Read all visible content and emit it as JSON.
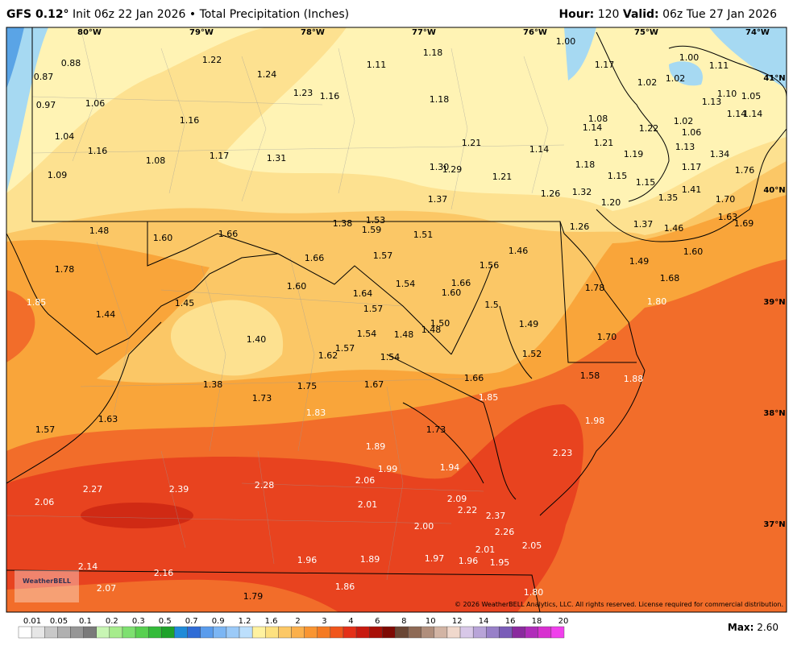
{
  "header": {
    "model": "GFS 0.12°",
    "init": "Init 06z 22 Jan 2026",
    "separator": "•",
    "product": "Total Precipitation (Inches)",
    "hour_label": "Hour:",
    "hour": "120",
    "valid_label": "Valid:",
    "valid": "06z Tue 27 Jan 2026"
  },
  "map": {
    "longitude_labels": [
      "80°W",
      "79°W",
      "78°W",
      "77°W",
      "76°W",
      "75°W",
      "74°W"
    ],
    "latitude_labels": [
      "41°N",
      "40°N",
      "39°N",
      "38°N",
      "37°N"
    ],
    "point_values": [
      "0.88",
      "0.87",
      "0.97",
      "1.06",
      "1.04",
      "1.16",
      "1.09",
      "1.22",
      "1.24",
      "1.23",
      "1.16",
      "1.11",
      "1.18",
      "1.18",
      "1.16",
      "1.17",
      "1.08",
      "1.31",
      "1.00",
      "1.17",
      "1.02",
      "1.00",
      "1.02",
      "1.11",
      "1.10",
      "1.05",
      "1.13",
      "1.14",
      "1.14",
      "1.08",
      "1.14",
      "1.22",
      "1.02",
      "1.06",
      "1.21",
      "1.13",
      "1.19",
      "1.34",
      "1.21",
      "1.14",
      "1.18",
      "1.15",
      "1.15",
      "1.17",
      "1.76",
      "1.30",
      "1.29",
      "1.21",
      "1.26",
      "1.32",
      "1.20",
      "1.35",
      "1.41",
      "1.70",
      "1.63",
      "1.69",
      "1.37",
      "1.38",
      "1.53",
      "1.59",
      "1.51",
      "1.26",
      "1.37",
      "1.46",
      "1.48",
      "1.60",
      "1.66",
      "1.66",
      "1.57",
      "1.56",
      "1.46",
      "1.49",
      "1.60",
      "1.78",
      "1.60",
      "1.54",
      "1.66",
      "1.60",
      "1.68",
      "1.78",
      "1.64",
      "1.57",
      "1.85",
      "1.45",
      "1.44",
      "1.5",
      "1.80",
      "1.50",
      "1.49",
      "1.54",
      "1.48",
      "1.48",
      "1.40",
      "1.57",
      "1.62",
      "1.54",
      "1.52",
      "1.70",
      "1.66",
      "1.58",
      "1.88",
      "1.38",
      "1.75",
      "1.67",
      "1.73",
      "1.85",
      "1.83",
      "1.63",
      "1.98",
      "1.57",
      "1.73",
      "1.89",
      "1.99",
      "1.94",
      "2.23",
      "2.27",
      "2.39",
      "2.28",
      "2.06",
      "2.09",
      "2.06",
      "2.01",
      "2.22",
      "2.37",
      "2.00",
      "2.26",
      "2.05",
      "2.01",
      "1.96",
      "1.89",
      "1.97",
      "1.96",
      "1.95",
      "2.14",
      "2.16",
      "2.07",
      "1.86",
      "1.79",
      "1.80"
    ],
    "logo": "WeatherBELL",
    "copyright": "© 2026 WeatherBELL Analytics, LLC. All rights reserved. License required for commercial distribution."
  },
  "footer": {
    "colorbar_labels": [
      "0.01",
      "0.05",
      "0.1",
      "0.2",
      "0.3",
      "0.5",
      "0.7",
      "0.9",
      "1.2",
      "1.6",
      "2",
      "3",
      "4",
      "6",
      "8",
      "10",
      "12",
      "14",
      "16",
      "18",
      "20"
    ],
    "max_label": "Max:",
    "max": "2.60"
  }
}
